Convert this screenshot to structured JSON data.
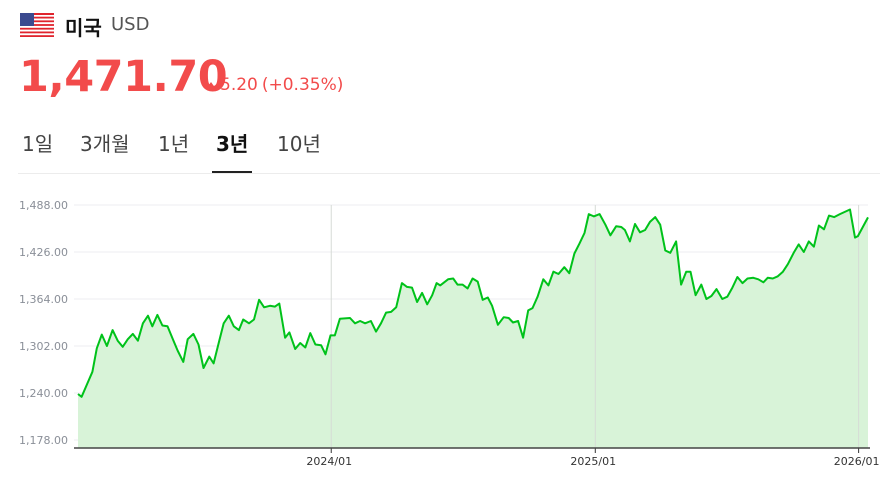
{
  "header": {
    "country": "미국",
    "currency": "USD",
    "flag_icon": "us-flag-icon",
    "price": "1,471.70",
    "change": "5.20",
    "change_pct": "(+0.35%)",
    "change_direction": "up",
    "color_up": "#f24b4b"
  },
  "tabs": [
    {
      "label": "1일"
    },
    {
      "label": "3개월"
    },
    {
      "label": "1년"
    },
    {
      "label": "3년",
      "active": true
    },
    {
      "label": "10년"
    }
  ],
  "chart_data": {
    "type": "area",
    "line_color": "#00c21a",
    "fill_color": "#d8f3d8",
    "ylim": [
      1178,
      1488
    ],
    "yticks": [
      "1,488.00",
      "1,426.00",
      "1,364.00",
      "1,302.00",
      "1,240.00",
      "1,178.00"
    ],
    "ytick_values": [
      1488,
      1426,
      1364,
      1302,
      1240,
      1178
    ],
    "xlim": [
      "2023-01-15",
      "2026-01-14"
    ],
    "xticks": [
      {
        "label": "2024/01",
        "date": "2024-01-01"
      },
      {
        "label": "2025/01",
        "date": "2025-01-01"
      },
      {
        "label": "2026/01",
        "date": "2026-01-01"
      }
    ],
    "grid": true,
    "x": [
      "2023-01-15",
      "2023-01-20",
      "2023-02-04",
      "2023-02-10",
      "2023-02-17",
      "2023-02-24",
      "2023-03-04",
      "2023-03-11",
      "2023-03-18",
      "2023-03-25",
      "2023-04-01",
      "2023-04-08",
      "2023-04-15",
      "2023-04-22",
      "2023-04-28",
      "2023-05-05",
      "2023-05-12",
      "2023-05-19",
      "2023-05-26",
      "2023-06-02",
      "2023-06-10",
      "2023-06-16",
      "2023-06-24",
      "2023-07-01",
      "2023-07-08",
      "2023-07-16",
      "2023-07-22",
      "2023-07-29",
      "2023-08-05",
      "2023-08-12",
      "2023-08-19",
      "2023-08-26",
      "2023-09-01",
      "2023-09-09",
      "2023-09-16",
      "2023-09-23",
      "2023-09-30",
      "2023-10-08",
      "2023-10-15",
      "2023-10-21",
      "2023-10-29",
      "2023-11-04",
      "2023-11-12",
      "2023-11-19",
      "2023-11-26",
      "2023-12-03",
      "2023-12-10",
      "2023-12-18",
      "2023-12-24",
      "2023-12-31",
      "2024-01-06",
      "2024-01-13",
      "2024-01-27",
      "2024-02-03",
      "2024-02-10",
      "2024-02-17",
      "2024-02-25",
      "2024-03-03",
      "2024-03-10",
      "2024-03-17",
      "2024-03-24",
      "2024-03-31",
      "2024-04-08",
      "2024-04-15",
      "2024-04-22",
      "2024-04-29",
      "2024-05-06",
      "2024-05-13",
      "2024-05-20",
      "2024-05-26",
      "2024-05-31",
      "2024-06-11",
      "2024-06-18",
      "2024-06-24",
      "2024-07-01",
      "2024-07-08",
      "2024-07-15",
      "2024-07-22",
      "2024-07-29",
      "2024-08-05",
      "2024-08-11",
      "2024-08-19",
      "2024-08-27",
      "2024-09-03",
      "2024-09-09",
      "2024-09-16",
      "2024-09-23",
      "2024-09-30",
      "2024-10-06",
      "2024-10-13",
      "2024-10-21",
      "2024-10-28",
      "2024-11-04",
      "2024-11-11",
      "2024-11-19",
      "2024-11-26",
      "2024-12-03",
      "2024-12-10",
      "2024-12-17",
      "2024-12-23",
      "2024-12-30",
      "2025-01-07",
      "2025-01-15",
      "2025-01-22",
      "2025-01-30",
      "2025-02-06",
      "2025-02-11",
      "2025-02-18",
      "2025-02-25",
      "2025-03-04",
      "2025-03-11",
      "2025-03-18",
      "2025-03-25",
      "2025-04-01",
      "2025-04-08",
      "2025-04-15",
      "2025-04-23",
      "2025-04-30",
      "2025-05-07",
      "2025-05-13",
      "2025-05-20",
      "2025-05-28",
      "2025-06-04",
      "2025-06-11",
      "2025-06-18",
      "2025-06-26",
      "2025-07-03",
      "2025-07-10",
      "2025-07-17",
      "2025-07-24",
      "2025-07-31",
      "2025-08-08",
      "2025-08-15",
      "2025-08-22",
      "2025-08-28",
      "2025-09-04",
      "2025-09-11",
      "2025-09-18",
      "2025-09-25",
      "2025-10-03",
      "2025-10-10",
      "2025-10-17",
      "2025-10-24",
      "2025-10-31",
      "2025-11-07",
      "2025-11-14",
      "2025-11-21",
      "2025-11-28",
      "2025-12-06",
      "2025-12-20",
      "2025-12-27",
      "2025-12-31",
      "2026-01-14"
    ],
    "y": [
      1238.7,
      1235,
      1268,
      1299,
      1317,
      1302,
      1323,
      1309,
      1301,
      1311,
      1318,
      1309,
      1332,
      1342,
      1328,
      1343,
      1329,
      1328,
      1312,
      1296,
      1281,
      1311,
      1318,
      1304,
      1273,
      1288,
      1279,
      1306,
      1332,
      1342,
      1328,
      1323,
      1337,
      1332,
      1337,
      1363,
      1353,
      1355,
      1354,
      1358,
      1313,
      1320,
      1298,
      1306,
      1300,
      1319,
      1304,
      1303,
      1291,
      1316,
      1316,
      1338,
      1339,
      1332,
      1335,
      1332,
      1335,
      1321,
      1332,
      1346,
      1347,
      1353,
      1385,
      1380,
      1379,
      1360,
      1372,
      1357,
      1369,
      1385,
      1382,
      1390,
      1391,
      1383,
      1383,
      1378,
      1391,
      1387,
      1363,
      1366,
      1355,
      1330,
      1340,
      1339,
      1333,
      1335,
      1313,
      1349,
      1352,
      1367,
      1390,
      1382,
      1400,
      1397,
      1406,
      1398,
      1424,
      1437,
      1451,
      1476,
      1473,
      1476,
      1462,
      1448,
      1460,
      1459,
      1455,
      1440,
      1463,
      1452,
      1455,
      1466,
      1472,
      1462,
      1428,
      1425,
      1440,
      1383,
      1400,
      1400,
      1369,
      1383,
      1364,
      1368,
      1377,
      1364,
      1367,
      1379,
      1393,
      1385,
      1391,
      1392,
      1390,
      1386,
      1392,
      1391,
      1394,
      1400,
      1410,
      1425,
      1436,
      1426,
      1440,
      1433,
      1461,
      1456,
      1474,
      1472,
      1476,
      1482,
      1445,
      1447,
      1471.7
    ]
  }
}
